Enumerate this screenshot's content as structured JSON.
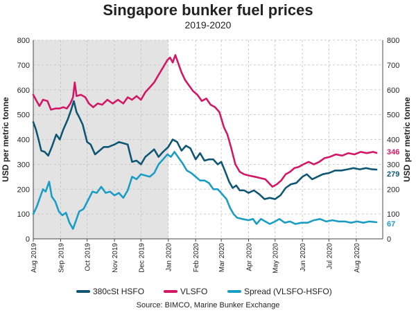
{
  "chart_data": {
    "type": "line",
    "title": "Singapore bunker fuel prices",
    "subtitle": "2019-2020",
    "ylabel_left": "USD per metric tonne",
    "ylabel_right": "USD per metric tonne",
    "ylim": [
      0,
      800
    ],
    "yticks": [
      "0",
      "100",
      "200",
      "300",
      "400",
      "500",
      "600",
      "700",
      "800"
    ],
    "x_range": [
      "2019-08-01",
      "2020-08-31"
    ],
    "xticks": [
      "Aug 2019",
      "Sep 2019",
      "Oct 2019",
      "Nov 2019",
      "Dec 2019",
      "Jan 2020",
      "Feb 2020",
      "Mar 2020",
      "Apr 2020",
      "May 2020",
      "Jun 2020",
      "Jul 2020",
      "Aug 2020"
    ],
    "xtick_dates": [
      "2019-08-01",
      "2019-09-01",
      "2019-10-01",
      "2019-11-01",
      "2019-12-01",
      "2020-01-01",
      "2020-02-01",
      "2020-03-01",
      "2020-04-01",
      "2020-05-01",
      "2020-06-01",
      "2020-07-01",
      "2020-08-01"
    ],
    "shaded_region": [
      "2019-08-01",
      "2020-01-01"
    ],
    "grid": true,
    "legend_position": "bottom",
    "source": "Source: BIMCO, Marine Bunker Exchange",
    "series": [
      {
        "name": "380cSt HSFO",
        "color": "#0e5673",
        "end_label": "279",
        "points": [
          [
            "2019-08-01",
            470
          ],
          [
            "2019-08-04",
            440
          ],
          [
            "2019-08-07",
            400
          ],
          [
            "2019-08-10",
            355
          ],
          [
            "2019-08-14",
            350
          ],
          [
            "2019-08-18",
            335
          ],
          [
            "2019-08-22",
            370
          ],
          [
            "2019-08-27",
            420
          ],
          [
            "2019-08-31",
            400
          ],
          [
            "2019-09-04",
            440
          ],
          [
            "2019-09-09",
            480
          ],
          [
            "2019-09-13",
            520
          ],
          [
            "2019-09-16",
            555
          ],
          [
            "2019-09-19",
            510
          ],
          [
            "2019-09-22",
            490
          ],
          [
            "2019-09-26",
            460
          ],
          [
            "2019-10-01",
            390
          ],
          [
            "2019-10-05",
            380
          ],
          [
            "2019-10-10",
            340
          ],
          [
            "2019-10-15",
            355
          ],
          [
            "2019-10-20",
            370
          ],
          [
            "2019-10-25",
            370
          ],
          [
            "2019-11-01",
            380
          ],
          [
            "2019-11-06",
            390
          ],
          [
            "2019-11-11",
            385
          ],
          [
            "2019-11-16",
            380
          ],
          [
            "2019-11-21",
            310
          ],
          [
            "2019-11-26",
            315
          ],
          [
            "2019-12-01",
            300
          ],
          [
            "2019-12-06",
            330
          ],
          [
            "2019-12-11",
            345
          ],
          [
            "2019-12-16",
            360
          ],
          [
            "2019-12-21",
            330
          ],
          [
            "2019-12-26",
            350
          ],
          [
            "2020-01-01",
            370
          ],
          [
            "2020-01-06",
            400
          ],
          [
            "2020-01-11",
            390
          ],
          [
            "2020-01-16",
            355
          ],
          [
            "2020-01-21",
            375
          ],
          [
            "2020-01-26",
            365
          ],
          [
            "2020-02-01",
            320
          ],
          [
            "2020-02-06",
            345
          ],
          [
            "2020-02-11",
            315
          ],
          [
            "2020-02-16",
            320
          ],
          [
            "2020-02-21",
            320
          ],
          [
            "2020-02-26",
            300
          ],
          [
            "2020-03-01",
            310
          ],
          [
            "2020-03-05",
            275
          ],
          [
            "2020-03-10",
            230
          ],
          [
            "2020-03-14",
            205
          ],
          [
            "2020-03-18",
            215
          ],
          [
            "2020-03-22",
            195
          ],
          [
            "2020-03-27",
            195
          ],
          [
            "2020-04-01",
            185
          ],
          [
            "2020-04-07",
            195
          ],
          [
            "2020-04-13",
            180
          ],
          [
            "2020-04-19",
            160
          ],
          [
            "2020-04-25",
            165
          ],
          [
            "2020-05-01",
            160
          ],
          [
            "2020-05-07",
            175
          ],
          [
            "2020-05-13",
            205
          ],
          [
            "2020-05-19",
            220
          ],
          [
            "2020-05-25",
            225
          ],
          [
            "2020-06-01",
            250
          ],
          [
            "2020-06-06",
            260
          ],
          [
            "2020-06-12",
            240
          ],
          [
            "2020-06-18",
            250
          ],
          [
            "2020-06-24",
            260
          ],
          [
            "2020-07-01",
            265
          ],
          [
            "2020-07-08",
            275
          ],
          [
            "2020-07-15",
            275
          ],
          [
            "2020-07-22",
            280
          ],
          [
            "2020-07-29",
            285
          ],
          [
            "2020-08-05",
            280
          ],
          [
            "2020-08-12",
            285
          ],
          [
            "2020-08-19",
            280
          ],
          [
            "2020-08-24",
            279
          ]
        ]
      },
      {
        "name": "VLSFO",
        "color": "#d31665",
        "end_label": "346",
        "points": [
          [
            "2019-08-01",
            580
          ],
          [
            "2019-08-04",
            560
          ],
          [
            "2019-08-08",
            535
          ],
          [
            "2019-08-12",
            560
          ],
          [
            "2019-08-17",
            555
          ],
          [
            "2019-08-21",
            520
          ],
          [
            "2019-08-26",
            525
          ],
          [
            "2019-08-31",
            525
          ],
          [
            "2019-09-04",
            530
          ],
          [
            "2019-09-08",
            525
          ],
          [
            "2019-09-12",
            545
          ],
          [
            "2019-09-15",
            570
          ],
          [
            "2019-09-17",
            630
          ],
          [
            "2019-09-19",
            575
          ],
          [
            "2019-09-24",
            580
          ],
          [
            "2019-09-29",
            570
          ],
          [
            "2019-10-03",
            545
          ],
          [
            "2019-10-08",
            530
          ],
          [
            "2019-10-13",
            545
          ],
          [
            "2019-10-18",
            540
          ],
          [
            "2019-10-24",
            560
          ],
          [
            "2019-10-30",
            545
          ],
          [
            "2019-11-05",
            560
          ],
          [
            "2019-11-11",
            545
          ],
          [
            "2019-11-16",
            570
          ],
          [
            "2019-11-21",
            560
          ],
          [
            "2019-11-26",
            575
          ],
          [
            "2019-12-01",
            560
          ],
          [
            "2019-12-06",
            590
          ],
          [
            "2019-12-11",
            610
          ],
          [
            "2019-12-16",
            630
          ],
          [
            "2019-12-21",
            660
          ],
          [
            "2019-12-26",
            690
          ],
          [
            "2019-12-31",
            720
          ],
          [
            "2020-01-03",
            730
          ],
          [
            "2020-01-06",
            710
          ],
          [
            "2020-01-09",
            740
          ],
          [
            "2020-01-12",
            710
          ],
          [
            "2020-01-16",
            670
          ],
          [
            "2020-01-20",
            640
          ],
          [
            "2020-01-24",
            620
          ],
          [
            "2020-01-29",
            595
          ],
          [
            "2020-02-03",
            580
          ],
          [
            "2020-02-08",
            555
          ],
          [
            "2020-02-13",
            565
          ],
          [
            "2020-02-18",
            540
          ],
          [
            "2020-02-23",
            530
          ],
          [
            "2020-02-28",
            510
          ],
          [
            "2020-03-04",
            450
          ],
          [
            "2020-03-08",
            420
          ],
          [
            "2020-03-12",
            370
          ],
          [
            "2020-03-17",
            300
          ],
          [
            "2020-03-22",
            270
          ],
          [
            "2020-03-27",
            260
          ],
          [
            "2020-04-01",
            255
          ],
          [
            "2020-04-08",
            250
          ],
          [
            "2020-04-14",
            245
          ],
          [
            "2020-04-20",
            240
          ],
          [
            "2020-04-24",
            225
          ],
          [
            "2020-04-28",
            210
          ],
          [
            "2020-05-03",
            220
          ],
          [
            "2020-05-08",
            235
          ],
          [
            "2020-05-13",
            260
          ],
          [
            "2020-05-18",
            270
          ],
          [
            "2020-05-23",
            285
          ],
          [
            "2020-05-28",
            290
          ],
          [
            "2020-06-02",
            300
          ],
          [
            "2020-06-08",
            310
          ],
          [
            "2020-06-14",
            300
          ],
          [
            "2020-06-20",
            310
          ],
          [
            "2020-06-26",
            325
          ],
          [
            "2020-07-02",
            330
          ],
          [
            "2020-07-09",
            340
          ],
          [
            "2020-07-16",
            335
          ],
          [
            "2020-07-23",
            345
          ],
          [
            "2020-07-30",
            340
          ],
          [
            "2020-08-06",
            350
          ],
          [
            "2020-08-13",
            345
          ],
          [
            "2020-08-20",
            350
          ],
          [
            "2020-08-24",
            346
          ]
        ]
      },
      {
        "name": "Spread (VLSFO-HSFO)",
        "color": "#1a9dc4",
        "end_label": "67",
        "points": [
          [
            "2019-08-01",
            100
          ],
          [
            "2019-08-05",
            130
          ],
          [
            "2019-08-08",
            160
          ],
          [
            "2019-08-12",
            200
          ],
          [
            "2019-08-15",
            190
          ],
          [
            "2019-08-19",
            230
          ],
          [
            "2019-08-22",
            170
          ],
          [
            "2019-08-26",
            150
          ],
          [
            "2019-08-30",
            110
          ],
          [
            "2019-09-03",
            95
          ],
          [
            "2019-09-07",
            105
          ],
          [
            "2019-09-11",
            65
          ],
          [
            "2019-09-15",
            40
          ],
          [
            "2019-09-18",
            70
          ],
          [
            "2019-09-22",
            110
          ],
          [
            "2019-09-27",
            120
          ],
          [
            "2019-10-02",
            155
          ],
          [
            "2019-10-07",
            190
          ],
          [
            "2019-10-12",
            185
          ],
          [
            "2019-10-17",
            210
          ],
          [
            "2019-10-22",
            185
          ],
          [
            "2019-10-27",
            190
          ],
          [
            "2019-11-01",
            175
          ],
          [
            "2019-11-06",
            185
          ],
          [
            "2019-11-11",
            165
          ],
          [
            "2019-11-16",
            195
          ],
          [
            "2019-11-21",
            250
          ],
          [
            "2019-11-26",
            240
          ],
          [
            "2019-12-01",
            260
          ],
          [
            "2019-12-06",
            255
          ],
          [
            "2019-12-11",
            250
          ],
          [
            "2019-12-16",
            265
          ],
          [
            "2019-12-21",
            300
          ],
          [
            "2019-12-26",
            320
          ],
          [
            "2019-12-31",
            340
          ],
          [
            "2020-01-04",
            330
          ],
          [
            "2020-01-08",
            350
          ],
          [
            "2020-01-12",
            330
          ],
          [
            "2020-01-17",
            305
          ],
          [
            "2020-01-22",
            275
          ],
          [
            "2020-01-27",
            265
          ],
          [
            "2020-02-01",
            250
          ],
          [
            "2020-02-06",
            235
          ],
          [
            "2020-02-11",
            235
          ],
          [
            "2020-02-16",
            225
          ],
          [
            "2020-02-21",
            200
          ],
          [
            "2020-02-26",
            200
          ],
          [
            "2020-03-02",
            180
          ],
          [
            "2020-03-07",
            160
          ],
          [
            "2020-03-11",
            125
          ],
          [
            "2020-03-15",
            100
          ],
          [
            "2020-03-19",
            85
          ],
          [
            "2020-03-25",
            80
          ],
          [
            "2020-04-01",
            75
          ],
          [
            "2020-04-06",
            80
          ],
          [
            "2020-04-10",
            60
          ],
          [
            "2020-04-15",
            80
          ],
          [
            "2020-04-20",
            70
          ],
          [
            "2020-04-25",
            60
          ],
          [
            "2020-05-01",
            70
          ],
          [
            "2020-05-06",
            80
          ],
          [
            "2020-05-12",
            65
          ],
          [
            "2020-05-18",
            70
          ],
          [
            "2020-05-24",
            60
          ],
          [
            "2020-05-31",
            65
          ],
          [
            "2020-06-07",
            65
          ],
          [
            "2020-06-14",
            75
          ],
          [
            "2020-06-21",
            80
          ],
          [
            "2020-06-28",
            70
          ],
          [
            "2020-07-05",
            75
          ],
          [
            "2020-07-12",
            70
          ],
          [
            "2020-07-19",
            70
          ],
          [
            "2020-07-26",
            65
          ],
          [
            "2020-08-02",
            70
          ],
          [
            "2020-08-09",
            65
          ],
          [
            "2020-08-16",
            70
          ],
          [
            "2020-08-24",
            67
          ]
        ]
      }
    ]
  }
}
